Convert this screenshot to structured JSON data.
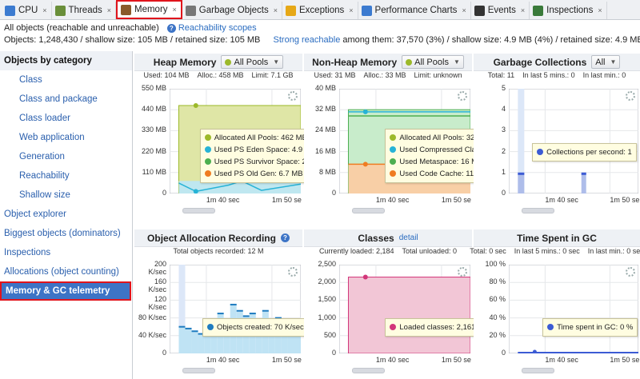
{
  "tabs": [
    {
      "label": "CPU",
      "icon": "cpu-icon",
      "color": "#3c7bd0"
    },
    {
      "label": "Threads",
      "icon": "threads-icon",
      "color": "#6a8f3a"
    },
    {
      "label": "Memory",
      "icon": "memory-icon",
      "color": "#8a5a2b",
      "active": true
    },
    {
      "label": "Garbage Objects",
      "icon": "trash-icon",
      "color": "#777"
    },
    {
      "label": "Exceptions",
      "icon": "lightning-icon",
      "color": "#e6a817"
    },
    {
      "label": "Performance Charts",
      "icon": "chart-icon",
      "color": "#3c7bd0"
    },
    {
      "label": "Events",
      "icon": "eye-icon",
      "color": "#333"
    },
    {
      "label": "Inspections",
      "icon": "eye-icon",
      "color": "#3a7a3a"
    }
  ],
  "info": {
    "all_objects": "All objects (reachable and unreachable)",
    "scopes_link": "Reachability scopes",
    "objects_prefix": "Objects: 1,248,430 / shallow size: 105 MB / retained size: 105 MB",
    "strong_link": "Strong reachable",
    "strong_suffix": " among them: 37,570 (3%) / shallow size: 4.9 MB (4%) / retained size: 4.9 MB (4%)"
  },
  "sidebar": {
    "items": [
      {
        "label": "Objects by category",
        "type": "header"
      },
      {
        "label": "Class",
        "type": "sub"
      },
      {
        "label": "Class and package",
        "type": "sub"
      },
      {
        "label": "Class loader",
        "type": "sub"
      },
      {
        "label": "Web application",
        "type": "sub"
      },
      {
        "label": "Generation",
        "type": "sub"
      },
      {
        "label": "Reachability",
        "type": "sub"
      },
      {
        "label": "Shallow size",
        "type": "sub"
      },
      {
        "label": "Object explorer",
        "type": "top"
      },
      {
        "label": "Biggest objects (dominators)",
        "type": "top"
      },
      {
        "label": "Inspections",
        "type": "top"
      },
      {
        "label": "Allocations (object counting)",
        "type": "top"
      },
      {
        "label": "Memory & GC telemetry",
        "type": "selected"
      }
    ]
  },
  "panels": {
    "heap": {
      "title": "Heap Memory",
      "dropdown": "All Pools",
      "stats": [
        "Used: 104 MB",
        "Alloc.: 458 MB",
        "Limit: 7.1 GB"
      ],
      "yticks": [
        "550 MB",
        "440 MB",
        "330 MB",
        "220 MB",
        "110 MB",
        "0"
      ],
      "xticks": [
        "1m 40 sec",
        "1m 50 se"
      ],
      "tooltip": [
        {
          "text": "Allocated All Pools: 462 MB",
          "color": "#9cb92a"
        },
        {
          "text": "Used PS Eden Space: 4.9 MB",
          "color": "#27b3d6"
        },
        {
          "text": "Used PS Survivor Space: 288 KB",
          "color": "#4caf50"
        },
        {
          "text": "Used PS Old Gen: 6.7 MB",
          "color": "#ef7c22"
        }
      ]
    },
    "nonheap": {
      "title": "Non-Heap Memory",
      "dropdown": "All Pools",
      "stats": [
        "Used: 31 MB",
        "Alloc.: 33 MB",
        "Limit: unknown"
      ],
      "yticks": [
        "40 MB",
        "32 MB",
        "24 MB",
        "16 MB",
        "8 MB",
        "0"
      ],
      "xticks": [
        "1m 40 sec",
        "1m 50 se"
      ],
      "tooltip": [
        {
          "text": "Allocated All Pools: 32 MB",
          "color": "#9cb92a"
        },
        {
          "text": "Used Compressed Class Space: 1.4 MB",
          "color": "#27b3d6"
        },
        {
          "text": "Used Metaspace: 16 MB",
          "color": "#4caf50"
        },
        {
          "text": "Used Code Cache: 11 MB",
          "color": "#ef7c22"
        }
      ]
    },
    "gc": {
      "title": "Garbage Collections",
      "dropdown": "All",
      "stats": [
        "Total: 11",
        "In last 5 mins.: 0",
        "In last min.: 0"
      ],
      "yticks": [
        "5",
        "4",
        "3",
        "2",
        "1",
        "0"
      ],
      "xticks": [
        "1m 40 sec",
        "1m 50 se"
      ],
      "tooltip": [
        {
          "text": "Collections per second: 1",
          "color": "#3c5bd4"
        }
      ]
    },
    "alloc": {
      "title": "Object Allocation Recording",
      "stats": [
        "Total objects recorded: 12 M"
      ],
      "yticks": [
        "200 K/sec",
        "160 K/sec",
        "120 K/sec",
        "80 K/sec",
        "40 K/sec",
        "0"
      ],
      "xticks": [
        "1m 40 sec",
        "1m 50 se"
      ],
      "tooltip": [
        {
          "text": "Objects created: 70 K/sec",
          "color": "#1f7cc0"
        }
      ]
    },
    "classes": {
      "title": "Classes",
      "detail": "detail",
      "stats": [
        "Currently loaded: 2,184",
        "Total unloaded: 0"
      ],
      "yticks": [
        "2,500",
        "2,000",
        "1,500",
        "1,000",
        "500",
        "0"
      ],
      "xticks": [
        "1m 40 sec",
        "1m 50 se"
      ],
      "tooltip": [
        {
          "text": "Loaded classes: 2,161",
          "color": "#d2367a"
        }
      ]
    },
    "gctime": {
      "title": "Time Spent in GC",
      "stats": [
        "Total: 0 sec",
        "In last 5 mins.: 0 sec",
        "In last min.: 0 sec"
      ],
      "yticks": [
        "100 %",
        "80 %",
        "60 %",
        "40 %",
        "20 %",
        "0"
      ],
      "xticks": [
        "1m 40 sec",
        "1m 50 se"
      ],
      "tooltip": [
        {
          "text": "Time spent in GC: 0 %",
          "color": "#3c5bd4"
        }
      ]
    }
  }
}
